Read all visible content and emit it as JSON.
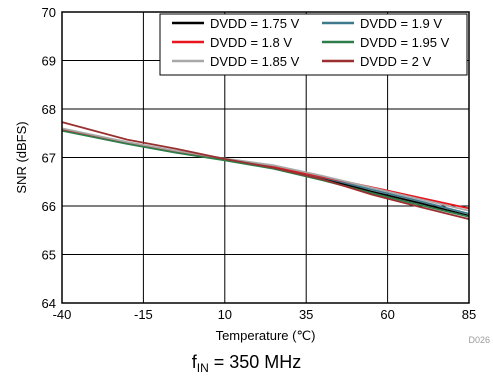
{
  "chart_data": {
    "type": "line",
    "xlabel": "Temperature (℃)",
    "ylabel": "SNR (dBFS)",
    "xlim": [
      -40,
      85
    ],
    "ylim": [
      64,
      70
    ],
    "xticks": [
      -40,
      -15,
      10,
      35,
      60,
      85
    ],
    "yticks": [
      64,
      65,
      66,
      67,
      68,
      69,
      70
    ],
    "grid": true,
    "legend_position": "top-right",
    "legend_columns": 2,
    "x": [
      -40,
      -20,
      -5,
      10,
      25,
      40,
      55,
      70,
      85
    ],
    "series": [
      {
        "name": "DVDD = 1.75 V",
        "color": "#000000",
        "values": [
          67.58,
          67.3,
          67.12,
          66.96,
          66.8,
          66.57,
          66.3,
          66.06,
          65.8
        ]
      },
      {
        "name": "DVDD = 1.9 V",
        "color": "#3f7a8c",
        "values": [
          67.56,
          67.29,
          67.11,
          66.95,
          66.79,
          66.59,
          66.34,
          66.1,
          65.84
        ]
      },
      {
        "name": "DVDD = 1.8 V",
        "color": "#e8141e",
        "values": [
          67.57,
          67.31,
          67.13,
          66.97,
          66.81,
          66.6,
          66.39,
          66.17,
          65.95
        ]
      },
      {
        "name": "DVDD = 1.95 V",
        "color": "#2e7d4a",
        "values": [
          67.55,
          67.28,
          67.1,
          66.94,
          66.77,
          66.53,
          66.27,
          66.02,
          65.78
        ]
      },
      {
        "name": "DVDD = 1.85 V",
        "color": "#a8a8a8",
        "values": [
          67.6,
          67.32,
          67.14,
          66.98,
          66.84,
          66.62,
          66.38,
          66.14,
          65.9
        ]
      },
      {
        "name": "DVDD = 2 V",
        "color": "#9b2f2f",
        "values": [
          67.73,
          67.37,
          67.18,
          66.97,
          66.79,
          66.55,
          66.24,
          65.98,
          65.73
        ]
      }
    ],
    "annotation": "D026"
  },
  "caption": {
    "prefix": "f",
    "subscript": "IN",
    "suffix": " = 350 MHz"
  }
}
